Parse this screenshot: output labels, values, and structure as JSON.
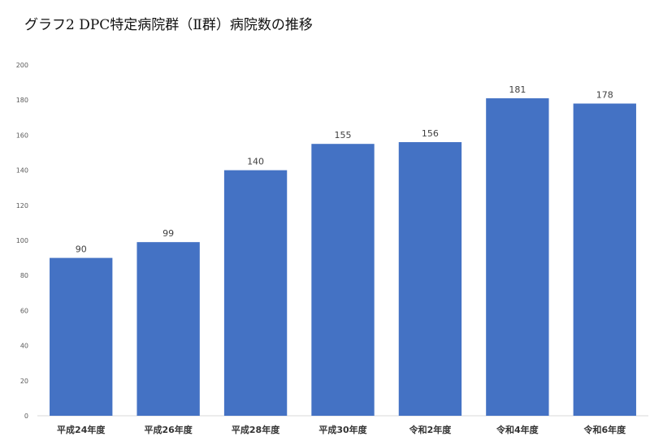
{
  "chart_data": {
    "type": "bar",
    "title": "グラフ2 DPC特定病院群（Ⅱ群）病院数の推移",
    "xlabel": "",
    "ylabel": "",
    "categories": [
      "平成24年度",
      "平成26年度",
      "平成28年度",
      "平成30年度",
      "令和2年度",
      "令和4年度",
      "令和6年度"
    ],
    "values": [
      90,
      99,
      140,
      155,
      156,
      181,
      178
    ],
    "ylim": [
      0,
      200
    ],
    "yticks": [
      0,
      20,
      40,
      60,
      80,
      100,
      120,
      140,
      160,
      180,
      200
    ],
    "grid": false,
    "legend": "none",
    "bar_color": "#4472C4",
    "data_labels": true
  }
}
